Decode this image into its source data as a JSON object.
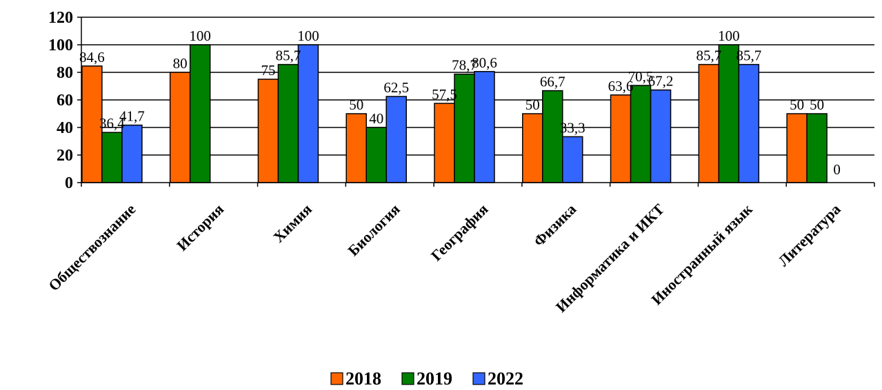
{
  "chart_data": {
    "type": "bar",
    "title": "",
    "xlabel": "",
    "ylabel": "",
    "ylim": [
      0,
      120
    ],
    "yticks": [
      "0",
      "20",
      "40",
      "60",
      "80",
      "100",
      "120"
    ],
    "grid": true,
    "legend_position": "bottom",
    "categories": [
      "Обществознание",
      "История",
      "Химия",
      "Биология",
      "География",
      "Физика",
      "Информатика и ИКТ",
      "Иностранный язык",
      "Литература"
    ],
    "series": [
      {
        "name": "2018",
        "color": "#FF6600",
        "values": [
          84.6,
          80,
          75,
          50,
          57.5,
          50,
          63.6,
          85.7,
          50
        ],
        "labels": [
          "84,6",
          "80",
          "75",
          "50",
          "57,5",
          "50",
          "63,6",
          "85,7",
          "50"
        ]
      },
      {
        "name": "2019",
        "color": "#008000",
        "values": [
          36.4,
          100,
          85.7,
          40,
          78.7,
          66.7,
          70.5,
          100,
          50
        ],
        "labels": [
          "36,4",
          "100",
          "85,7",
          "40",
          "78,7",
          "66,7",
          "70,5",
          "100",
          "50"
        ]
      },
      {
        "name": "2022",
        "color": "#3366FF",
        "values": [
          41.7,
          null,
          100,
          62.5,
          80.6,
          33.3,
          67.2,
          85.7,
          0
        ],
        "labels": [
          "41,7",
          "",
          "100",
          "62,5",
          "80,6",
          "33,3",
          "67,2",
          "85,7",
          "0"
        ]
      }
    ]
  }
}
